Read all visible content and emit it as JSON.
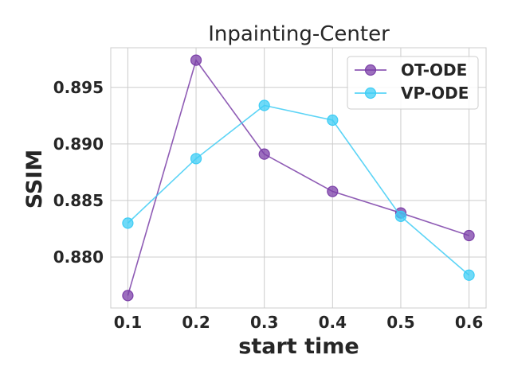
{
  "chart_data": {
    "type": "line",
    "title": "Inpainting-Center",
    "xlabel": "start time",
    "ylabel": "SSIM",
    "x": [
      0.1,
      0.2,
      0.3,
      0.4,
      0.5,
      0.6
    ],
    "x_tick_labels": [
      "0.1",
      "0.2",
      "0.3",
      "0.4",
      "0.5",
      "0.6"
    ],
    "xlim": [
      0.075,
      0.625
    ],
    "y_ticks": [
      0.88,
      0.885,
      0.89,
      0.895
    ],
    "y_tick_labels": [
      "0.880",
      "0.885",
      "0.890",
      "0.895"
    ],
    "ylim": [
      0.8755,
      0.8985
    ],
    "grid": true,
    "legend_position": "top-right",
    "series": [
      {
        "name": "OT-ODE",
        "color": "#7b3fa8",
        "values": [
          0.8766,
          0.8974,
          0.8891,
          0.8858,
          0.8839,
          0.8819
        ]
      },
      {
        "name": "VP-ODE",
        "color": "#3fcdf5",
        "values": [
          0.883,
          0.8887,
          0.8934,
          0.8921,
          0.8836,
          0.8784
        ]
      }
    ]
  }
}
